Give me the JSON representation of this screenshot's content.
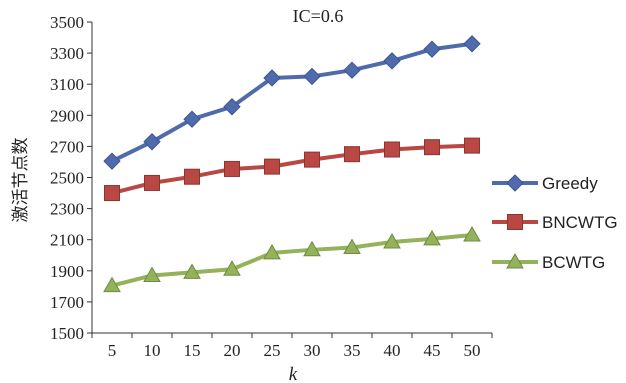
{
  "chart_data": {
    "type": "line",
    "title": "IC=0.6",
    "xlabel": "k",
    "ylabel": "激活节点数",
    "x": [
      5,
      10,
      15,
      20,
      25,
      30,
      35,
      40,
      45,
      50
    ],
    "xticks": [
      "5",
      "10",
      "15",
      "20",
      "25",
      "30",
      "35",
      "40",
      "45",
      "50"
    ],
    "ylim": [
      1500,
      3500
    ],
    "yticks": [
      "1500",
      "1700",
      "1900",
      "2100",
      "2300",
      "2500",
      "2700",
      "2900",
      "3100",
      "3300",
      "3500"
    ],
    "grid": false,
    "legend_position": "right",
    "series": [
      {
        "name": "Greedy",
        "color": "#4f6bab",
        "marker": "diamond",
        "values": [
          2605,
          2730,
          2875,
          2955,
          3140,
          3150,
          3190,
          3250,
          3325,
          3360
        ]
      },
      {
        "name": "BNCWTG",
        "color": "#b94744",
        "marker": "square",
        "values": [
          2400,
          2465,
          2505,
          2555,
          2570,
          2615,
          2650,
          2680,
          2695,
          2705
        ]
      },
      {
        "name": "BCWTG",
        "color": "#93b25a",
        "marker": "triangle",
        "values": [
          1805,
          1870,
          1890,
          1910,
          2015,
          2035,
          2050,
          2085,
          2105,
          2130
        ]
      }
    ]
  }
}
